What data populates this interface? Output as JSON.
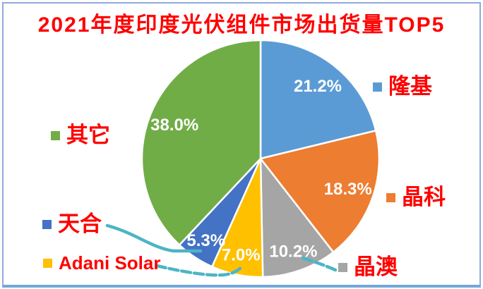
{
  "title": {
    "text": "2021年度印度光伏组件市场出货量TOP5",
    "color": "#FF0000"
  },
  "chart_data": {
    "type": "pie",
    "title": "2021年度印度光伏组件市场出货量TOP5",
    "unit": "%",
    "direction": "clockwise",
    "start_angle_deg": 0,
    "slices": [
      {
        "label": "隆基",
        "value": 21.2,
        "pct_label": "21.2%",
        "color": "#5B9BD5"
      },
      {
        "label": "晶科",
        "value": 18.3,
        "pct_label": "18.3%",
        "color": "#ED7D31"
      },
      {
        "label": "晶澳",
        "value": 10.2,
        "pct_label": "10.2%",
        "color": "#A5A5A5"
      },
      {
        "label": "Adani Solar",
        "value": 7.0,
        "pct_label": "7.0%",
        "color": "#FFC000"
      },
      {
        "label": "天合",
        "value": 5.3,
        "pct_label": "5.3%",
        "color": "#4472C4"
      },
      {
        "label": "其它",
        "value": 38.0,
        "pct_label": "38.0%",
        "color": "#70AD47"
      }
    ],
    "pct_label_color": "#FFFFFF",
    "legend_text_color": "#FF0000",
    "legend_position": "around-callouts"
  },
  "annotations": {
    "connector_color": "#4BB5C6"
  },
  "frame": {
    "border_color": "#8FAADC",
    "background": "#FFFFFF"
  }
}
